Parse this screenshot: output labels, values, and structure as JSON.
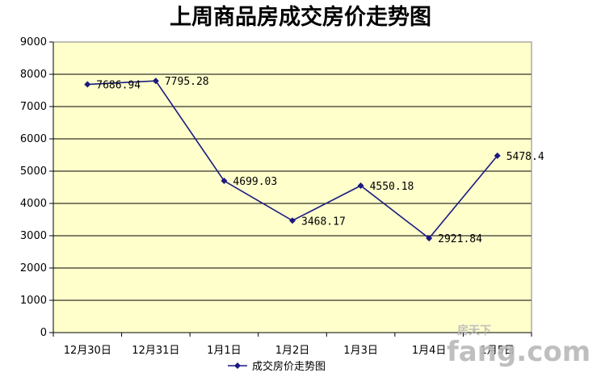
{
  "chart_data": {
    "type": "line",
    "title": "上周商品房成交房价走势图",
    "categories": [
      "12月30日",
      "12月31日",
      "1月1日",
      "1月2日",
      "1月3日",
      "1月4日",
      "1月5日"
    ],
    "series": [
      {
        "name": "成交房价走势图",
        "values": [
          7686.94,
          7795.28,
          4699.03,
          3468.17,
          4550.18,
          2921.84,
          5478.4
        ],
        "value_labels": [
          "7686.94",
          "7795.28",
          "4699.03",
          "3468.17",
          "4550.18",
          "2921.84",
          "5478.4"
        ],
        "color": "#1a1a80"
      }
    ],
    "ylim": [
      0,
      9000
    ],
    "yticks": [
      0,
      1000,
      2000,
      3000,
      4000,
      5000,
      6000,
      7000,
      8000,
      9000
    ],
    "grid": true,
    "legend_position": "bottom",
    "plot_background": "#ffffcc"
  },
  "watermark": {
    "logo_text": "fang.com",
    "chinese_text": "房天下"
  }
}
